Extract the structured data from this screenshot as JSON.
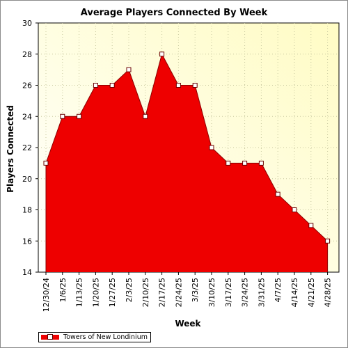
{
  "chart_data": {
    "type": "area",
    "title": "Average Players Connected By Week",
    "xlabel": "Week",
    "ylabel": "Players Connected",
    "ylim": [
      14,
      30
    ],
    "yticks": [
      14,
      16,
      18,
      20,
      22,
      24,
      26,
      28,
      30
    ],
    "grid": true,
    "legend": "bottom-left",
    "categories": [
      "12/30/24",
      "1/6/25",
      "1/13/25",
      "1/20/25",
      "1/27/25",
      "2/3/25",
      "2/10/25",
      "2/17/25",
      "2/24/25",
      "3/3/25",
      "3/10/25",
      "3/17/25",
      "3/24/25",
      "3/31/25",
      "4/7/25",
      "4/14/25",
      "4/21/25",
      "4/28/25"
    ],
    "series": [
      {
        "name": "Towers of New Londinium",
        "color": "#ee0000",
        "values": [
          21,
          24,
          24,
          26,
          26,
          27,
          24,
          28,
          26,
          26,
          22,
          21,
          21,
          21,
          19,
          18,
          17,
          16
        ]
      }
    ]
  }
}
